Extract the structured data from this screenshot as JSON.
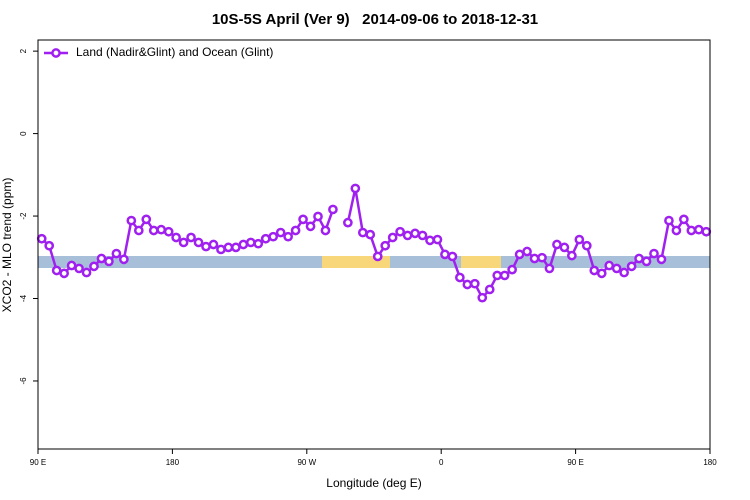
{
  "chart_data": {
    "type": "line",
    "title": "10S-5S April (Ver 9)   2014-09-06 to 2018-12-31",
    "xlabel": "Longitude (deg E)",
    "ylabel": "XCO2 - MLO trend (ppm)",
    "xlim": [
      90,
      540
    ],
    "xticks": [
      {
        "value": 90,
        "label": "90 E"
      },
      {
        "value": 180,
        "label": "180"
      },
      {
        "value": 270,
        "label": "90 W"
      },
      {
        "value": 360,
        "label": "0"
      },
      {
        "value": 450,
        "label": "90 E"
      },
      {
        "value": 540,
        "label": "180"
      }
    ],
    "ylim": [
      -7.65,
      2.27
    ],
    "yticks": [
      2,
      0,
      -2,
      -4,
      -6
    ],
    "legend": "top-left",
    "series": [
      {
        "name": "Land (Nadir&Glint) and Ocean (Glint)",
        "color": "#a020f0",
        "x": [
          92.5,
          97.5,
          102.5,
          107.5,
          112.5,
          117.5,
          122.5,
          127.5,
          132.5,
          137.5,
          142.5,
          147.5,
          152.5,
          157.5,
          162.5,
          167.5,
          172.5,
          177.5,
          182.5,
          187.5,
          192.5,
          197.5,
          202.5,
          207.5,
          212.5,
          217.5,
          222.5,
          227.5,
          232.5,
          237.5,
          242.5,
          247.5,
          252.5,
          257.5,
          262.5,
          267.5,
          272.5,
          277.5,
          282.5,
          287.5,
          292.5,
          297.5,
          302.5,
          307.5,
          312.5,
          317.5,
          322.5,
          327.5,
          332.5,
          337.5,
          342.5,
          347.5,
          352.5,
          357.5,
          362.5,
          367.5,
          372.5,
          377.5,
          382.5,
          387.5,
          392.5,
          397.5,
          402.5,
          407.5,
          412.5,
          417.5,
          422.5,
          427.5,
          432.5,
          437.5,
          442.5,
          447.5,
          452.5,
          457.5,
          462.5,
          467.5,
          472.5,
          477.5,
          482.5,
          487.5,
          492.5,
          497.5,
          502.5,
          507.5,
          512.5,
          517.5,
          522.5,
          527.5,
          532.5,
          537.5
        ],
        "values": [
          -2.55,
          -2.72,
          -3.32,
          -3.39,
          -3.2,
          -3.27,
          -3.37,
          -3.22,
          -3.03,
          -3.1,
          -2.91,
          -3.05,
          -2.11,
          -2.35,
          -2.08,
          -2.35,
          -2.33,
          -2.38,
          -2.52,
          -2.64,
          -2.52,
          -2.64,
          -2.74,
          -2.69,
          -2.81,
          -2.76,
          -2.76,
          -2.69,
          -2.64,
          -2.67,
          -2.55,
          -2.5,
          -2.4,
          -2.5,
          -2.35,
          -2.08,
          -2.25,
          -2.01,
          -2.35,
          -1.84,
          null,
          -2.16,
          -1.33,
          -2.4,
          -2.45,
          -2.98,
          -2.72,
          -2.52,
          -2.38,
          -2.47,
          -2.42,
          -2.47,
          -2.59,
          -2.57,
          -2.93,
          -2.98,
          -3.49,
          -3.66,
          -3.64,
          -3.98,
          -3.78,
          -3.44,
          -3.44,
          -3.3,
          -2.93,
          -2.86,
          -3.03,
          -3.01,
          -3.27,
          -2.69,
          -2.76,
          -2.96,
          -2.57,
          -2.72,
          -3.32,
          -3.39,
          -3.2,
          -3.27,
          -3.37,
          -3.22,
          -3.03,
          -3.1,
          -2.91,
          -3.05,
          -2.11,
          -2.35,
          -2.08,
          -2.35,
          -2.33,
          -2.38
        ]
      }
    ]
  }
}
